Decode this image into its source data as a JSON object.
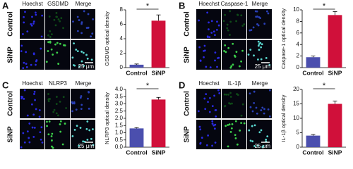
{
  "panels": [
    {
      "letter": "A",
      "image_labels": [
        "Hoechst",
        "GSDMD",
        "Merge"
      ],
      "row_labels": [
        "Control",
        "SiNP"
      ],
      "scale_bar": "25 μm"
    },
    {
      "letter": "B",
      "image_labels": [
        "Hoechst",
        "Caspase-1",
        "Merge"
      ],
      "row_labels": [
        "Control",
        "SiNP"
      ],
      "scale_bar": "25 μm"
    },
    {
      "letter": "C",
      "image_labels": [
        "Hoechst",
        "NLRP3",
        "Merge"
      ],
      "row_labels": [
        "Control",
        "SiNP"
      ],
      "scale_bar": "25 μm"
    },
    {
      "letter": "D",
      "image_labels": [
        "Hoechst",
        "IL-1β",
        "Merge"
      ],
      "row_labels": [
        "Control",
        "SiNP"
      ],
      "scale_bar": "25 μm"
    }
  ],
  "chart_data": [
    {
      "type": "bar",
      "ylabel": "GSDMD optical density",
      "categories": [
        "Control",
        "SiNP"
      ],
      "values": [
        0.4,
        6.5
      ],
      "errors": [
        0.1,
        0.8
      ],
      "colors": [
        "#4b4fae",
        "#d0103a"
      ],
      "ylim": [
        0,
        8
      ],
      "yticks": [
        0,
        2,
        4,
        6,
        8
      ],
      "significance": "*"
    },
    {
      "type": "bar",
      "ylabel": "Caspase-1 optical density",
      "categories": [
        "Control",
        "SiNP"
      ],
      "values": [
        1.8,
        9.1
      ],
      "errors": [
        0.2,
        0.6
      ],
      "colors": [
        "#4b4fae",
        "#d0103a"
      ],
      "ylim": [
        0,
        10
      ],
      "yticks": [
        0,
        2,
        4,
        6,
        8,
        10
      ],
      "significance": "*"
    },
    {
      "type": "bar",
      "ylabel": "NLRP3 optical density",
      "categories": [
        "Control",
        "SiNP"
      ],
      "values": [
        1.3,
        3.3
      ],
      "errors": [
        0.05,
        0.15
      ],
      "colors": [
        "#4b4fae",
        "#d0103a"
      ],
      "ylim": [
        0,
        4
      ],
      "yticks": [
        {
          "value": 0,
          "label": "0.0"
        },
        0.5,
        {
          "value": 1,
          "label": "1.0"
        },
        1.5,
        {
          "value": 2,
          "label": "2.0"
        },
        2.5,
        {
          "value": 3,
          "label": "3.0"
        },
        3.5,
        {
          "value": 4,
          "label": "4.0"
        }
      ],
      "significance": "*"
    },
    {
      "type": "bar",
      "ylabel": "IL-1β optical density",
      "categories": [
        "Control",
        "SiNP"
      ],
      "values": [
        4,
        15
      ],
      "errors": [
        0.4,
        1
      ],
      "colors": [
        "#4b4fae",
        "#d0103a"
      ],
      "ylim": [
        0,
        20
      ],
      "yticks": [
        0,
        5,
        10,
        15,
        20
      ],
      "significance": "*"
    }
  ]
}
